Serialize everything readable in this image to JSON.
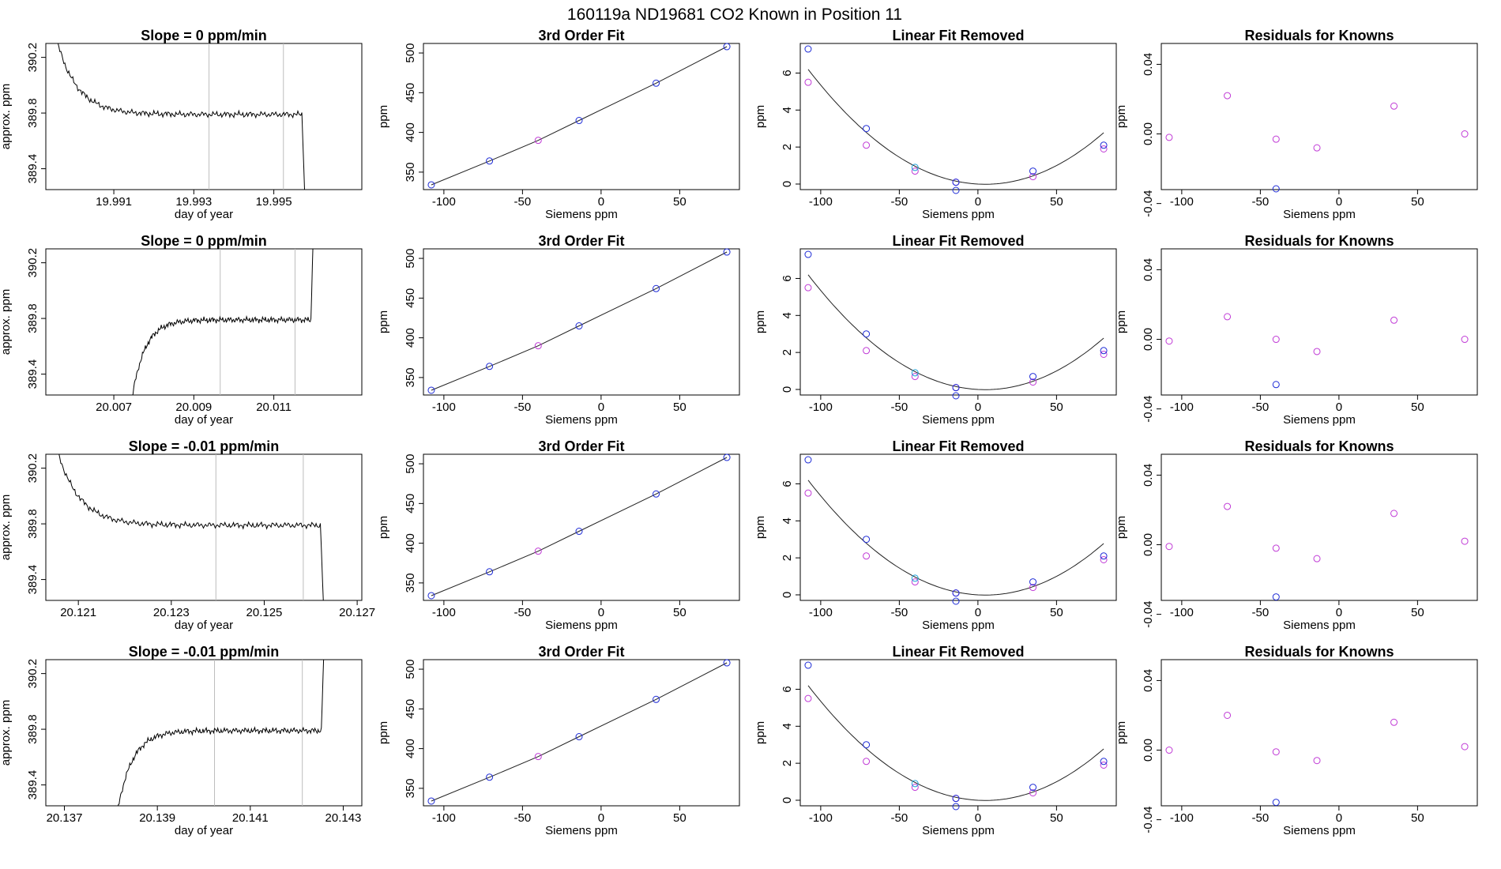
{
  "figure": {
    "title": "160119a      ND19681    CO2 Known in Position  11"
  },
  "rows": [
    {
      "trace": {
        "title": "Slope =  0  ppm/min",
        "xlabel": "day of year",
        "ylabel": "approx. ppm",
        "xticks": [
          "19.991",
          "19.993",
          "19.995"
        ],
        "yticks": [
          "389.4",
          "389.8",
          "390.2"
        ],
        "xticks_num": [
          19.991,
          19.993,
          19.995
        ],
        "xlim": [
          19.9893,
          19.9972
        ],
        "ylim": [
          389.25,
          390.3
        ],
        "markers": [
          19.99338,
          19.99524
        ],
        "shape": "fall",
        "x_start": 19.9893,
        "x_end": 19.9958
      },
      "fit": {
        "title": "3rd Order Fit",
        "xlabel": "Siemens ppm",
        "ylabel": "ppm",
        "xticks": [
          "-100",
          "-50",
          "0",
          "50"
        ],
        "yticks": [
          "350",
          "400",
          "450",
          "500"
        ]
      },
      "linear": {
        "title": "Linear Fit Removed",
        "xlabel": "Siemens ppm",
        "ylabel": "ppm",
        "xticks": [
          "-100",
          "-50",
          "0",
          "50"
        ],
        "yticks": [
          "0",
          "2",
          "4",
          "6"
        ]
      },
      "resid": {
        "title": "Residuals for Knowns",
        "xlabel": "Siemens ppm",
        "ylabel": "ppm",
        "xticks": [
          "-100",
          "-50",
          "0",
          "50"
        ],
        "yticks": [
          "-0.04",
          "0.00",
          "0.04"
        ],
        "points": [
          [
            -108,
            -0.002
          ],
          [
            -71,
            0.022
          ],
          [
            -40,
            -0.003
          ],
          [
            -14,
            -0.008
          ],
          [
            35,
            0.016
          ],
          [
            80,
            0.0
          ]
        ],
        "blue_point": [
          -40,
          -0.032
        ]
      }
    },
    {
      "trace": {
        "title": "Slope =  0  ppm/min",
        "xlabel": "day of year",
        "ylabel": "approx. ppm",
        "xticks": [
          "20.007",
          "20.009",
          "20.011"
        ],
        "yticks": [
          "389.4",
          "389.8",
          "390.2"
        ],
        "xticks_num": [
          20.007,
          20.009,
          20.011
        ],
        "xlim": [
          20.0053,
          20.0132
        ],
        "ylim": [
          389.25,
          390.3
        ],
        "markers": [
          20.00966,
          20.01153
        ],
        "shape": "rise",
        "x_start": 20.0073,
        "x_end": 20.012
      },
      "fit": {
        "title": "3rd Order Fit",
        "xlabel": "Siemens ppm",
        "ylabel": "ppm",
        "xticks": [
          "-100",
          "-50",
          "0",
          "50"
        ],
        "yticks": [
          "350",
          "400",
          "450",
          "500"
        ]
      },
      "linear": {
        "title": "Linear Fit Removed",
        "xlabel": "Siemens ppm",
        "ylabel": "ppm",
        "xticks": [
          "-100",
          "-50",
          "0",
          "50"
        ],
        "yticks": [
          "0",
          "2",
          "4",
          "6"
        ]
      },
      "resid": {
        "title": "Residuals for Knowns",
        "xlabel": "Siemens ppm",
        "ylabel": "ppm",
        "xticks": [
          "-100",
          "-50",
          "0",
          "50"
        ],
        "yticks": [
          "-0.04",
          "0.00",
          "0.04"
        ],
        "points": [
          [
            -108,
            -0.001
          ],
          [
            -71,
            0.013
          ],
          [
            -40,
            0.0
          ],
          [
            -14,
            -0.007
          ],
          [
            35,
            0.011
          ],
          [
            80,
            0.0
          ]
        ],
        "blue_point": [
          -40,
          -0.026
        ]
      }
    },
    {
      "trace": {
        "title": "Slope =  -0.01  ppm/min",
        "xlabel": "day of year",
        "ylabel": "approx. ppm",
        "xticks": [
          "20.121",
          "20.123",
          "20.125",
          "20.127"
        ],
        "yticks": [
          "389.4",
          "389.8",
          "390.2"
        ],
        "xticks_num": [
          20.121,
          20.123,
          20.125,
          20.127
        ],
        "xlim": [
          20.1203,
          20.1271
        ],
        "ylim": [
          389.25,
          390.3
        ],
        "markers": [
          20.12396,
          20.12584
        ],
        "shape": "fall",
        "x_start": 20.1203,
        "x_end": 20.1263
      },
      "fit": {
        "title": "3rd Order Fit",
        "xlabel": "Siemens ppm",
        "ylabel": "ppm",
        "xticks": [
          "-100",
          "-50",
          "0",
          "50"
        ],
        "yticks": [
          "350",
          "400",
          "450",
          "500"
        ]
      },
      "linear": {
        "title": "Linear Fit Removed",
        "xlabel": "Siemens ppm",
        "ylabel": "ppm",
        "xticks": [
          "-100",
          "-50",
          "0",
          "50"
        ],
        "yticks": [
          "0",
          "2",
          "4",
          "6"
        ]
      },
      "resid": {
        "title": "Residuals for Knowns",
        "xlabel": "Siemens ppm",
        "ylabel": "ppm",
        "xticks": [
          "-100",
          "-50",
          "0",
          "50"
        ],
        "yticks": [
          "-0.04",
          "0.00",
          "0.04"
        ],
        "points": [
          [
            -108,
            -0.001
          ],
          [
            -71,
            0.022
          ],
          [
            -40,
            -0.002
          ],
          [
            -14,
            -0.008
          ],
          [
            35,
            0.018
          ],
          [
            80,
            0.002
          ]
        ],
        "blue_point": [
          -40,
          -0.03
        ]
      }
    },
    {
      "trace": {
        "title": "Slope =  -0.01  ppm/min",
        "xlabel": "day of year",
        "ylabel": "approx. ppm",
        "xticks": [
          "20.137",
          "20.139",
          "20.141",
          "20.143"
        ],
        "yticks": [
          "389.4",
          "389.8",
          "390.2"
        ],
        "xticks_num": [
          20.137,
          20.139,
          20.141,
          20.143
        ],
        "xlim": [
          20.1366,
          20.1434
        ],
        "ylim": [
          389.25,
          390.3
        ],
        "markers": [
          20.14023,
          20.14212
        ],
        "shape": "rise",
        "x_start": 20.138,
        "x_end": 20.1426
      },
      "fit": {
        "title": "3rd Order Fit",
        "xlabel": "Siemens ppm",
        "ylabel": "ppm",
        "xticks": [
          "-100",
          "-50",
          "0",
          "50"
        ],
        "yticks": [
          "350",
          "400",
          "450",
          "500"
        ]
      },
      "linear": {
        "title": "Linear Fit Removed",
        "xlabel": "Siemens ppm",
        "ylabel": "ppm",
        "xticks": [
          "-100",
          "-50",
          "0",
          "50"
        ],
        "yticks": [
          "0",
          "2",
          "4",
          "6"
        ]
      },
      "resid": {
        "title": "Residuals for Knowns",
        "xlabel": "Siemens ppm",
        "ylabel": "ppm",
        "xticks": [
          "-100",
          "-50",
          "0",
          "50"
        ],
        "yticks": [
          "-0.04",
          "0.00",
          "0.04"
        ],
        "points": [
          [
            -108,
            0.0
          ],
          [
            -71,
            0.02
          ],
          [
            -40,
            -0.001
          ],
          [
            -14,
            -0.006
          ],
          [
            35,
            0.016
          ],
          [
            80,
            0.002
          ]
        ],
        "blue_point": [
          -40,
          -0.03
        ]
      }
    }
  ],
  "chart_data": [
    {
      "type": "line",
      "name": "3rd order fit of knowns",
      "x": [
        -108,
        -71,
        -40,
        -14,
        35,
        80
      ],
      "y_knowns": [
        334,
        364,
        390,
        415,
        462,
        508
      ],
      "xlim": [
        -113,
        88
      ],
      "ylim": [
        328,
        512
      ]
    },
    {
      "type": "scatter",
      "name": "linear fit removed",
      "x": [
        -108,
        -71,
        -40,
        -14,
        35,
        80
      ],
      "y_fit": [
        7.3,
        3.0,
        0.9,
        0.1,
        0.7,
        2.1
      ],
      "y_obs": [
        5.5,
        2.1,
        0.7,
        0.1,
        0.4,
        1.9
      ],
      "curve": "0.00049 * x^2 - 0.0045 * x",
      "xlim": [
        -113,
        88
      ],
      "ylim": [
        -0.3,
        7.6
      ]
    },
    {
      "type": "scatter",
      "name": "residuals for knowns",
      "xlim": [
        -113,
        88
      ],
      "ylim": [
        -0.032,
        0.052
      ]
    }
  ]
}
